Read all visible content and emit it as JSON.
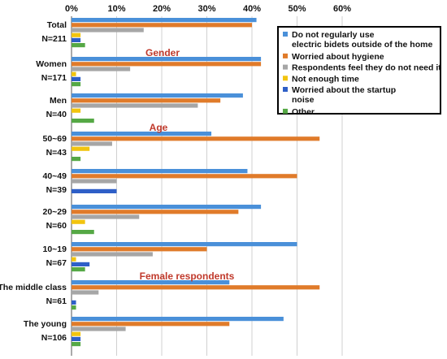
{
  "chart_data": {
    "type": "bar",
    "orientation": "horizontal",
    "xlim": [
      0,
      60
    ],
    "x_ticks": [
      "0%",
      "10%",
      "20%",
      "30%",
      "40%",
      "50%",
      "60%"
    ],
    "grid": true,
    "legend_position": "top-right",
    "group_labels": [
      "Gender",
      "Age",
      "Female respondents"
    ],
    "categories": [
      {
        "label": "Total",
        "n": "N=211"
      },
      {
        "label": "Women",
        "n": "N=171"
      },
      {
        "label": "Men",
        "n": "N=40"
      },
      {
        "label": "50~69",
        "n": "N=43"
      },
      {
        "label": "40~49",
        "n": "N=39"
      },
      {
        "label": "20~29",
        "n": "N=60"
      },
      {
        "label": "10~19",
        "n": "N=67"
      },
      {
        "label": "The middle class",
        "n": "N=61"
      },
      {
        "label": "The young",
        "n": "N=106"
      }
    ],
    "series": [
      {
        "name": "Do not regularly use electric bidets outside of the home",
        "color": "#4a90d9",
        "values": [
          41,
          42,
          38,
          31,
          39,
          42,
          50,
          35,
          47
        ]
      },
      {
        "name": "Worried about hygiene",
        "color": "#e07b2a",
        "values": [
          40,
          42,
          33,
          55,
          50,
          37,
          30,
          55,
          35
        ]
      },
      {
        "name": "Respondents feel they do not need it",
        "color": "#a6a6a6",
        "values": [
          16,
          13,
          28,
          9,
          10,
          15,
          18,
          6,
          12
        ]
      },
      {
        "name": "Not enough time",
        "color": "#f2c40f",
        "values": [
          2,
          1,
          2,
          4,
          0,
          3,
          1,
          0,
          2
        ]
      },
      {
        "name": "Worried about the startup noise",
        "color": "#2e5fc7",
        "values": [
          2,
          2,
          0,
          0,
          10,
          0,
          4,
          1,
          2
        ]
      },
      {
        "name": "Other",
        "color": "#55a845",
        "values": [
          3,
          2,
          5,
          2,
          0,
          5,
          3,
          1,
          2
        ]
      }
    ]
  }
}
